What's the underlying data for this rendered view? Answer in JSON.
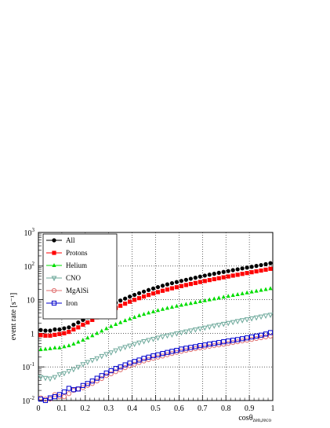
{
  "chart_data": {
    "type": "scatter",
    "title": "",
    "xlabel": "cosθ",
    "xlabel_sub": "zen,reco",
    "ylabel": "event rate [s⁻¹]",
    "xlim": [
      0,
      1
    ],
    "ylim": [
      0.01,
      1000
    ],
    "y_scale": "log",
    "grid": true,
    "legend_position": "top-left",
    "x_ticks": [
      "0",
      "0.1",
      "0.2",
      "0.3",
      "0.4",
      "0.5",
      "0.6",
      "0.7",
      "0.8",
      "0.9",
      "1"
    ],
    "y_ticks": [
      {
        "value": 0.01,
        "base": "10",
        "exp": "-2"
      },
      {
        "value": 0.1,
        "base": "10",
        "exp": "-1"
      },
      {
        "value": 1,
        "base": "1",
        "exp": ""
      },
      {
        "value": 10,
        "base": "10",
        "exp": ""
      },
      {
        "value": 100,
        "base": "10",
        "exp": "2"
      },
      {
        "value": 1000,
        "base": "10",
        "exp": "3"
      }
    ],
    "x": [
      0.01,
      0.03,
      0.05,
      0.07,
      0.09,
      0.11,
      0.13,
      0.15,
      0.17,
      0.19,
      0.21,
      0.23,
      0.25,
      0.27,
      0.29,
      0.31,
      0.33,
      0.35,
      0.37,
      0.39,
      0.41,
      0.43,
      0.45,
      0.47,
      0.49,
      0.51,
      0.53,
      0.55,
      0.57,
      0.59,
      0.61,
      0.63,
      0.65,
      0.67,
      0.69,
      0.71,
      0.73,
      0.75,
      0.77,
      0.79,
      0.81,
      0.83,
      0.85,
      0.87,
      0.89,
      0.91,
      0.93,
      0.95,
      0.97,
      0.99
    ],
    "series": [
      {
        "name": "All",
        "color": "#000000",
        "marker": "filled-circle",
        "values": [
          1.25,
          1.2,
          1.2,
          1.3,
          1.3,
          1.4,
          1.5,
          1.8,
          2.1,
          2.5,
          3.0,
          3.6,
          4.3,
          5.1,
          6.0,
          7.0,
          8.1,
          9.4,
          10.8,
          12.3,
          13.9,
          15.6,
          17.4,
          19.4,
          21.5,
          23.7,
          26.0,
          28.5,
          31.0,
          33.5,
          36.2,
          39.0,
          42.0,
          45.0,
          48.5,
          52.0,
          55.5,
          59.0,
          63.0,
          67.0,
          71.0,
          75.5,
          80.0,
          85.0,
          90.0,
          95.0,
          101.0,
          107.0,
          114.0,
          122.0
        ]
      },
      {
        "name": "Protons",
        "color": "#ff0000",
        "marker": "filled-square",
        "values": [
          0.88,
          0.85,
          0.85,
          0.9,
          0.95,
          1.0,
          1.1,
          1.3,
          1.5,
          1.8,
          2.1,
          2.5,
          3.0,
          3.6,
          4.2,
          4.9,
          5.7,
          6.6,
          7.6,
          8.7,
          9.9,
          11.1,
          12.4,
          13.8,
          15.3,
          16.8,
          18.4,
          20.0,
          21.8,
          23.5,
          25.4,
          27.3,
          29.3,
          31.4,
          33.6,
          35.9,
          38.3,
          40.8,
          43.5,
          46.2,
          49.0,
          52.0,
          55.0,
          58.5,
          62.0,
          65.5,
          69.5,
          73.5,
          78.0,
          83.0
        ]
      },
      {
        "name": "Helium",
        "color": "#00dd00",
        "marker": "filled-triangle",
        "values": [
          0.33,
          0.34,
          0.35,
          0.37,
          0.37,
          0.4,
          0.43,
          0.48,
          0.55,
          0.63,
          0.73,
          0.85,
          1.0,
          1.18,
          1.38,
          1.6,
          1.85,
          2.1,
          2.4,
          2.7,
          3.0,
          3.35,
          3.7,
          4.05,
          4.4,
          4.8,
          5.2,
          5.6,
          6.0,
          6.45,
          6.9,
          7.35,
          7.8,
          8.3,
          8.85,
          9.4,
          10.0,
          10.6,
          11.3,
          12.0,
          12.7,
          13.5,
          14.3,
          15.2,
          16.1,
          17.1,
          18.1,
          19.2,
          20.3,
          21.5
        ]
      },
      {
        "name": "CNO",
        "color": "#6ca89a",
        "marker": "open-triangle-down",
        "values": [
          0.05,
          0.047,
          0.045,
          0.05,
          0.06,
          0.065,
          0.075,
          0.085,
          0.1,
          0.12,
          0.14,
          0.16,
          0.18,
          0.21,
          0.24,
          0.27,
          0.31,
          0.35,
          0.39,
          0.43,
          0.48,
          0.53,
          0.58,
          0.63,
          0.68,
          0.74,
          0.8,
          0.86,
          0.92,
          0.99,
          1.06,
          1.13,
          1.21,
          1.29,
          1.38,
          1.47,
          1.57,
          1.68,
          1.79,
          1.91,
          2.03,
          2.16,
          2.3,
          2.45,
          2.61,
          2.78,
          2.96,
          3.15,
          3.35,
          3.55
        ]
      },
      {
        "name": "MgAlSi",
        "color": "#e07070",
        "marker": "open-circle",
        "values": [
          0.012,
          0.011,
          0.011,
          0.015,
          0.013,
          0.013,
          0.016,
          0.02,
          0.022,
          0.024,
          0.028,
          0.032,
          0.038,
          0.045,
          0.055,
          0.062,
          0.072,
          0.082,
          0.095,
          0.108,
          0.12,
          0.135,
          0.15,
          0.165,
          0.18,
          0.195,
          0.21,
          0.23,
          0.25,
          0.27,
          0.29,
          0.31,
          0.33,
          0.35,
          0.37,
          0.39,
          0.41,
          0.43,
          0.45,
          0.47,
          0.5,
          0.53,
          0.56,
          0.59,
          0.62,
          0.66,
          0.7,
          0.74,
          0.78,
          0.82
        ]
      },
      {
        "name": "Iron",
        "color": "#0000cc",
        "marker": "open-square",
        "values": [
          0.011,
          0.01,
          0.012,
          0.013,
          0.015,
          0.018,
          0.023,
          0.021,
          0.022,
          0.028,
          0.032,
          0.038,
          0.046,
          0.055,
          0.066,
          0.077,
          0.09,
          0.1,
          0.115,
          0.13,
          0.145,
          0.16,
          0.18,
          0.195,
          0.215,
          0.23,
          0.25,
          0.27,
          0.29,
          0.31,
          0.34,
          0.36,
          0.38,
          0.4,
          0.43,
          0.45,
          0.48,
          0.5,
          0.53,
          0.56,
          0.59,
          0.62,
          0.65,
          0.69,
          0.73,
          0.78,
          0.83,
          0.88,
          0.95,
          1.05
        ]
      }
    ]
  }
}
